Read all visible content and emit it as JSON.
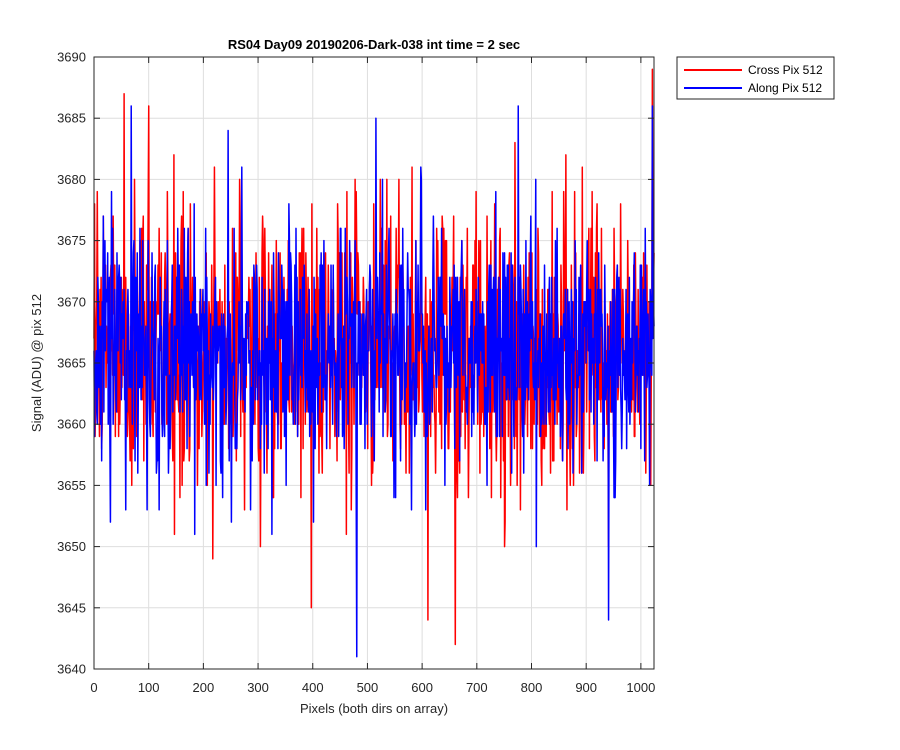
{
  "chart_data": {
    "type": "line",
    "title": "RS04 Day09 20190206-Dark-038 int time = 2 sec",
    "xlabel": "Pixels (both dirs on array)",
    "ylabel": "Signal (ADU) @ pix 512",
    "xlim": [
      0,
      1024
    ],
    "ylim": [
      3640,
      3690
    ],
    "xticks": [
      0,
      100,
      200,
      300,
      400,
      500,
      600,
      700,
      800,
      900,
      1000
    ],
    "yticks": [
      3640,
      3645,
      3650,
      3655,
      3660,
      3665,
      3670,
      3675,
      3680,
      3685,
      3690
    ],
    "grid": true,
    "legend_position": "outside-top-right",
    "series": [
      {
        "name": "Cross Pix 512",
        "color": "#ff0000",
        "n_points": 1024,
        "mean": 3666,
        "std": 5.6,
        "seed": 4271,
        "points": [
          [
            0,
            3667
          ],
          [
            55,
            3687
          ],
          [
            100,
            3686
          ],
          [
            160,
            3677
          ],
          [
            397,
            3645
          ],
          [
            610,
            3644
          ],
          [
            660,
            3642
          ],
          [
            940,
            3650
          ],
          [
            1020,
            3689
          ]
        ]
      },
      {
        "name": "Along Pix 512",
        "color": "#0000ff",
        "n_points": 1024,
        "mean": 3666,
        "std": 5.1,
        "seed": 9137,
        "points": [
          [
            0,
            3666
          ],
          [
            68,
            3686
          ],
          [
            245,
            3684
          ],
          [
            480,
            3641
          ],
          [
            515,
            3685
          ],
          [
            775,
            3686
          ],
          [
            940,
            3644
          ],
          [
            1020,
            3686
          ]
        ]
      }
    ]
  }
}
